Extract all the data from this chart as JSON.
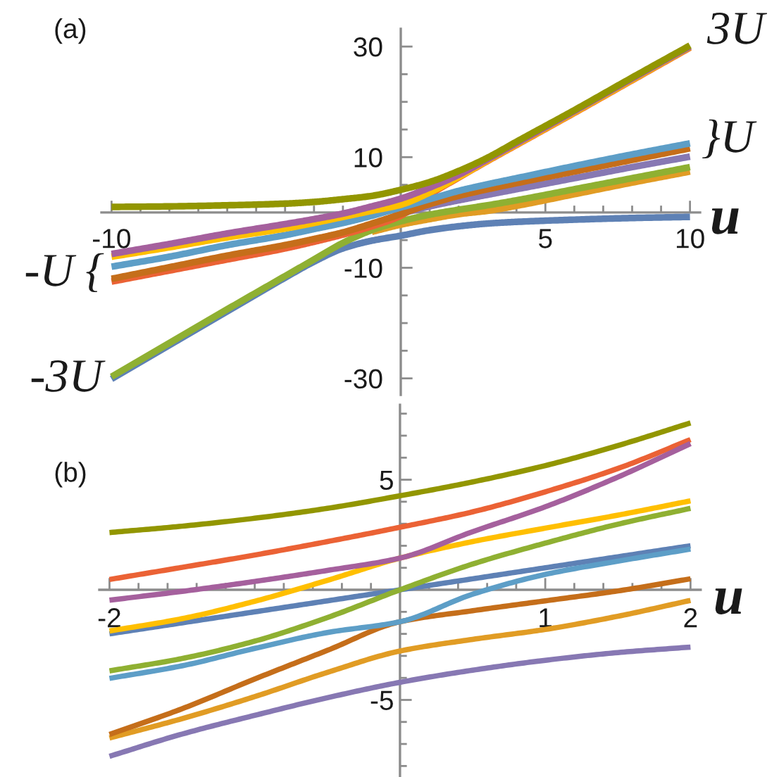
{
  "chart_data": [
    {
      "type": "line",
      "title": "(a)",
      "xlabel": "u",
      "x": [
        -10,
        -8,
        -6,
        -4,
        -3,
        -2,
        -1,
        0,
        1,
        2,
        3,
        4,
        6,
        8,
        10
      ],
      "xlim": [
        -10.35,
        10.35
      ],
      "ylim": [
        -33.0,
        33.2
      ],
      "xticks": [
        -10,
        {
          "value": -9,
          "label": null
        },
        {
          "value": -8,
          "label": null
        },
        {
          "value": -7,
          "label": null
        },
        {
          "value": -6,
          "label": null
        },
        {
          "value": -5,
          "label": null
        },
        {
          "value": -4,
          "label": null
        },
        {
          "value": -3,
          "label": null
        },
        {
          "value": -2,
          "label": null
        },
        {
          "value": -1,
          "label": null
        },
        {
          "value": 1,
          "label": null
        },
        {
          "value": 2,
          "label": null
        },
        {
          "value": 3,
          "label": null
        },
        {
          "value": 4,
          "label": null
        },
        5,
        {
          "value": 6,
          "label": null
        },
        {
          "value": 7,
          "label": null
        },
        {
          "value": 8,
          "label": null
        },
        {
          "value": 9,
          "label": null
        },
        10
      ],
      "yticks": [
        -30,
        {
          "value": -25,
          "label": null
        },
        {
          "value": -20,
          "label": null
        },
        {
          "value": -15,
          "label": null
        },
        -10,
        {
          "value": -5,
          "label": null
        },
        {
          "value": 5,
          "label": null
        },
        10,
        {
          "value": 15,
          "label": null
        },
        {
          "value": 20,
          "label": null
        },
        {
          "value": 25,
          "label": null
        },
        30
      ],
      "annotations": [
        "3U",
        "}U",
        "-U {",
        "-3U"
      ],
      "series": [
        {
          "color": "#5e81b5",
          "values": [
            -30.1,
            -24.0,
            -17.9,
            -11.8,
            -8.9,
            -6.5,
            -5.1,
            -4.2,
            -3.2,
            -2.5,
            -2.0,
            -1.7,
            -1.3,
            -1.0,
            -0.8
          ]
        },
        {
          "color": "#e19c24",
          "values": [
            null,
            null,
            null,
            null,
            null,
            null,
            -3.5,
            -2.2,
            -1.2,
            -0.3,
            0.3,
            1.2,
            3.3,
            5.4,
            7.4
          ]
        },
        {
          "color": "#8fb032",
          "values": [
            -29.7,
            -23.6,
            -17.5,
            -11.5,
            -8.5,
            -5.5,
            -3.2,
            -1.6,
            -0.4,
            0.5,
            1.3,
            2.2,
            4.2,
            6.2,
            8.2
          ]
        },
        {
          "color": "#eb6235",
          "values": [
            -12.5,
            -10.5,
            -8.5,
            -6.5,
            -5.3,
            -4.0,
            -2.5,
            -0.6,
            3.2,
            6.3,
            9.3,
            12.2,
            18.0,
            23.9,
            29.8
          ]
        },
        {
          "color": "#8778b3",
          "values": [
            null,
            null,
            null,
            null,
            null,
            null,
            null,
            -0.2,
            1.1,
            2.2,
            3.2,
            4.2,
            6.2,
            8.2,
            10.1
          ]
        },
        {
          "color": "#c56e1a",
          "values": [
            -12.0,
            -9.9,
            -7.8,
            -5.9,
            -4.8,
            -3.6,
            -2.0,
            -0.3,
            1.5,
            3.0,
            4.2,
            5.3,
            7.4,
            9.5,
            11.6
          ]
        },
        {
          "color": "#5d9ec7",
          "values": [
            -9.8,
            -8.0,
            -5.9,
            -4.1,
            -3.0,
            -1.9,
            -0.6,
            0.9,
            2.4,
            3.9,
            5.1,
            6.2,
            8.4,
            10.5,
            12.5
          ]
        },
        {
          "color": "#ffbf00",
          "values": [
            -8.0,
            -6.3,
            -4.5,
            -2.9,
            -1.9,
            -0.8,
            0.3,
            1.4,
            3.6,
            6.4,
            9.4,
            12.3,
            18.1,
            24.0,
            29.9
          ]
        },
        {
          "color": "#a5609d",
          "values": [
            -7.5,
            -5.7,
            -3.8,
            -2.1,
            -1.2,
            -0.2,
            1.1,
            2.5,
            4.5,
            6.8,
            9.6,
            12.5,
            18.3,
            24.2,
            30.0
          ]
        },
        {
          "color": "#929600",
          "values": [
            1.0,
            1.1,
            1.3,
            1.6,
            1.9,
            2.4,
            3.0,
            4.1,
            5.5,
            7.5,
            9.9,
            12.8,
            18.5,
            24.4,
            30.2
          ]
        }
      ]
    },
    {
      "type": "line",
      "title": "(b)",
      "xlabel": "u",
      "x": [
        -2,
        -1.5,
        -1,
        -0.5,
        0,
        0.5,
        1,
        1.5,
        2
      ],
      "xlim": [
        -2.07,
        2.07
      ],
      "ylim": [
        -8.5,
        8.4
      ],
      "xticks": [
        -2,
        {
          "value": -1.8,
          "label": null
        },
        {
          "value": -1.6,
          "label": null
        },
        {
          "value": -1.4,
          "label": null
        },
        {
          "value": -1.2,
          "label": null
        },
        {
          "value": -1,
          "label": null
        },
        {
          "value": -0.8,
          "label": null
        },
        {
          "value": -0.6,
          "label": null
        },
        {
          "value": -0.4,
          "label": null
        },
        {
          "value": -0.2,
          "label": null
        },
        {
          "value": 0.2,
          "label": null
        },
        {
          "value": 0.4,
          "label": null
        },
        {
          "value": 0.6,
          "label": null
        },
        {
          "value": 0.8,
          "label": null
        },
        1,
        {
          "value": 1.2,
          "label": null
        },
        {
          "value": 1.4,
          "label": null
        },
        {
          "value": 1.6,
          "label": null
        },
        {
          "value": 1.8,
          "label": null
        },
        2
      ],
      "yticks": [
        {
          "value": -8,
          "label": null
        },
        {
          "value": -7,
          "label": null
        },
        {
          "value": -6,
          "label": null
        },
        -5,
        {
          "value": -4,
          "label": null
        },
        {
          "value": -3,
          "label": null
        },
        {
          "value": -2,
          "label": null
        },
        {
          "value": -1,
          "label": null
        },
        {
          "value": 1,
          "label": null
        },
        {
          "value": 2,
          "label": null
        },
        {
          "value": 3,
          "label": null
        },
        {
          "value": 4,
          "label": null
        },
        5,
        {
          "value": 6,
          "label": null
        },
        {
          "value": 7,
          "label": null
        },
        {
          "value": 8,
          "label": null
        }
      ],
      "series": [
        {
          "color": "#5e81b5",
          "values": [
            -2.0,
            -1.5,
            -1.0,
            -0.5,
            0.0,
            0.5,
            1.0,
            1.5,
            2.0
          ]
        },
        {
          "color": "#e19c24",
          "values": [
            -6.73,
            -5.85,
            -4.85,
            -3.75,
            -2.78,
            -2.25,
            -1.8,
            -1.2,
            -0.48
          ]
        },
        {
          "color": "#8fb032",
          "values": [
            -3.68,
            -3.12,
            -2.33,
            -1.26,
            0.0,
            1.17,
            2.12,
            2.98,
            3.7
          ]
        },
        {
          "color": "#eb6235",
          "values": [
            0.47,
            1.02,
            1.58,
            2.19,
            2.84,
            3.54,
            4.45,
            5.51,
            6.82
          ]
        },
        {
          "color": "#8778b3",
          "values": [
            -7.56,
            -6.55,
            -5.7,
            -4.9,
            -4.2,
            -3.65,
            -3.2,
            -2.85,
            -2.6
          ]
        },
        {
          "color": "#c56e1a",
          "values": [
            -6.57,
            -5.4,
            -4.05,
            -2.75,
            -1.45,
            -0.95,
            -0.5,
            -0.05,
            0.5
          ]
        },
        {
          "color": "#5d9ec7",
          "values": [
            -4.02,
            -3.45,
            -2.66,
            -1.94,
            -1.45,
            -0.2,
            0.7,
            1.3,
            1.85
          ]
        },
        {
          "color": "#ffbf00",
          "values": [
            -1.87,
            -1.31,
            -0.52,
            0.43,
            1.44,
            2.19,
            2.8,
            3.39,
            4.04
          ]
        },
        {
          "color": "#a5609d",
          "values": [
            -0.47,
            -0.07,
            0.38,
            0.88,
            1.44,
            2.64,
            3.77,
            5.12,
            6.64
          ]
        },
        {
          "color": "#929600",
          "values": [
            2.6,
            2.89,
            3.25,
            3.7,
            4.27,
            4.9,
            5.64,
            6.55,
            7.58
          ]
        }
      ]
    }
  ]
}
